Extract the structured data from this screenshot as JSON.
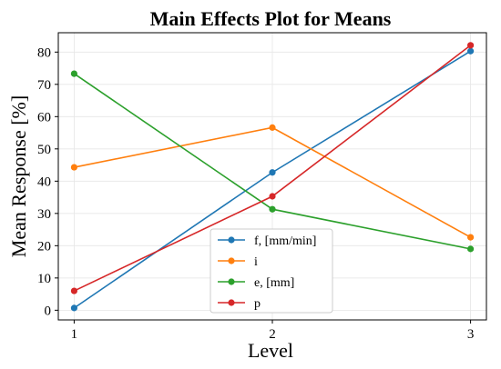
{
  "chart_data": {
    "type": "line",
    "title": "Main Effects Plot for Means",
    "xlabel": "Level",
    "ylabel": "Mean Response [%]",
    "x": [
      1,
      2,
      3
    ],
    "xticks": [
      "1",
      "2",
      "3"
    ],
    "xlim": [
      0.92,
      3.08
    ],
    "ylim": [
      -3,
      86
    ],
    "yticks": [
      0,
      10,
      20,
      30,
      40,
      50,
      60,
      70,
      80
    ],
    "grid": true,
    "legend_position": "bottom-center",
    "series": [
      {
        "name": "f, [mm/min]",
        "color": "#1f77b4",
        "values": [
          0.7,
          42.7,
          80.3
        ]
      },
      {
        "name": "i",
        "color": "#ff7f0e",
        "values": [
          44.3,
          56.6,
          22.6
        ]
      },
      {
        "name": "e, [mm]",
        "color": "#2ca02c",
        "values": [
          73.3,
          31.3,
          19.0
        ]
      },
      {
        "name": "p",
        "color": "#d62728",
        "values": [
          6.0,
          35.3,
          82.1
        ]
      }
    ]
  }
}
